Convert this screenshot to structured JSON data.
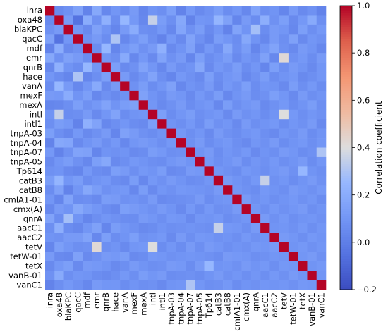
{
  "chart_data": {
    "type": "heatmap",
    "title": "",
    "labels": [
      "inra",
      "oxa48",
      "blaKPC",
      "qacC",
      "mdf",
      "emr",
      "qnrB",
      "hace",
      "vanA",
      "mexF",
      "mexA",
      "intl",
      "intl1",
      "tnpA-03",
      "tnpA-04",
      "tnpA-07",
      "tnpA-05",
      "Tp614",
      "catB3",
      "catB8",
      "cmlA1-01",
      "cmx(A)",
      "qnrA",
      "aacC1",
      "aacC2",
      "tetV",
      "tetW-01",
      "tetX",
      "vanB-01",
      "vanC1"
    ],
    "colorbar": {
      "label": "Correlation coefficient",
      "min": -0.2,
      "max": 1.0,
      "ticks": [
        1.0,
        0.8,
        0.6,
        0.4,
        0.2,
        0.0,
        -0.2
      ],
      "tick_labels": [
        "1.0",
        "0.8",
        "0.6",
        "0.4",
        "0.2",
        "0.0",
        "−0.2"
      ],
      "colormap": "coolwarm"
    },
    "matrix": [
      [
        1.0,
        0.05,
        0.08,
        0.15,
        0.02,
        0.18,
        0.04,
        0.1,
        0.06,
        0.12,
        0.03,
        0.09,
        0.07,
        0.14,
        0.02,
        0.11,
        0.05,
        0.08,
        0.13,
        0.06,
        0.1,
        0.04,
        0.16,
        0.07,
        0.09,
        0.03,
        0.12,
        0.05,
        0.08,
        0.02
      ],
      [
        0.05,
        1.0,
        0.12,
        -0.05,
        0.2,
        0.08,
        0.22,
        0.06,
        0.25,
        0.11,
        0.04,
        0.35,
        0.13,
        0.07,
        0.18,
        0.02,
        0.1,
        0.09,
        0.24,
        0.15,
        0.03,
        0.12,
        0.06,
        0.21,
        0.08,
        0.14,
        0.05,
        0.11,
        0.19,
        0.07
      ],
      [
        0.08,
        0.12,
        1.0,
        0.1,
        0.05,
        0.15,
        0.09,
        0.03,
        0.12,
        0.2,
        0.07,
        0.06,
        0.11,
        0.04,
        0.17,
        0.08,
        0.13,
        0.05,
        0.1,
        0.02,
        0.16,
        0.09,
        0.28,
        0.06,
        0.12,
        0.1,
        0.04,
        0.14,
        0.07,
        0.11
      ],
      [
        0.15,
        -0.05,
        0.1,
        1.0,
        0.08,
        0.12,
        0.06,
        0.3,
        0.04,
        0.09,
        0.14,
        0.07,
        0.02,
        0.11,
        0.05,
        0.16,
        0.08,
        0.03,
        0.13,
        0.1,
        0.06,
        0.18,
        0.09,
        0.04,
        0.12,
        0.07,
        0.15,
        0.05,
        0.1,
        0.08
      ],
      [
        0.02,
        0.2,
        0.05,
        0.08,
        1.0,
        0.06,
        0.25,
        0.03,
        0.1,
        0.14,
        0.08,
        0.12,
        0.22,
        0.05,
        0.09,
        0.15,
        0.04,
        0.11,
        0.06,
        0.18,
        0.07,
        0.13,
        0.03,
        0.1,
        0.16,
        0.08,
        0.05,
        0.12,
        0.09,
        0.04
      ],
      [
        0.18,
        0.08,
        0.15,
        0.12,
        0.06,
        1.0,
        0.1,
        0.07,
        0.19,
        0.04,
        0.11,
        0.05,
        0.16,
        0.08,
        0.12,
        0.03,
        0.14,
        0.06,
        0.09,
        0.13,
        0.05,
        0.1,
        0.07,
        0.15,
        0.04,
        0.42,
        0.08,
        0.11,
        0.06,
        0.12
      ],
      [
        0.04,
        0.22,
        0.09,
        0.06,
        0.25,
        0.1,
        1.0,
        0.14,
        0.05,
        0.08,
        0.16,
        0.1,
        0.04,
        0.12,
        0.07,
        0.09,
        0.18,
        0.05,
        0.11,
        0.08,
        0.13,
        0.06,
        0.1,
        0.03,
        0.14,
        0.07,
        0.12,
        0.09,
        0.05,
        0.1
      ],
      [
        0.1,
        0.06,
        0.03,
        0.3,
        0.03,
        0.07,
        0.14,
        1.0,
        0.12,
        0.05,
        0.09,
        0.16,
        0.07,
        0.03,
        0.11,
        0.08,
        0.05,
        0.14,
        0.06,
        0.1,
        0.12,
        0.04,
        0.08,
        0.13,
        0.06,
        0.09,
        0.11,
        0.05,
        0.07,
        0.1
      ],
      [
        0.06,
        0.25,
        0.12,
        0.04,
        0.1,
        0.19,
        0.05,
        0.12,
        1.0,
        0.08,
        0.13,
        0.06,
        0.1,
        0.15,
        0.04,
        0.09,
        0.07,
        0.12,
        0.05,
        0.11,
        0.08,
        0.14,
        0.06,
        0.1,
        0.09,
        0.05,
        0.13,
        0.07,
        0.11,
        0.06
      ],
      [
        0.12,
        0.11,
        0.2,
        0.09,
        0.14,
        0.04,
        0.08,
        0.05,
        0.08,
        1.0,
        0.15,
        0.09,
        0.06,
        0.12,
        0.1,
        0.05,
        0.11,
        0.07,
        0.13,
        0.04,
        0.09,
        0.12,
        0.06,
        0.08,
        0.14,
        0.1,
        0.05,
        0.12,
        0.07,
        0.09
      ],
      [
        0.03,
        0.04,
        0.07,
        0.14,
        0.08,
        0.11,
        0.16,
        0.09,
        0.13,
        0.15,
        1.0,
        0.1,
        0.05,
        0.08,
        0.12,
        0.06,
        0.09,
        0.11,
        0.04,
        0.13,
        0.07,
        0.1,
        0.12,
        0.05,
        0.08,
        0.11,
        0.06,
        0.09,
        0.13,
        0.07
      ],
      [
        0.09,
        0.35,
        0.06,
        0.07,
        0.12,
        0.05,
        0.1,
        0.16,
        0.06,
        0.09,
        0.1,
        1.0,
        0.14,
        0.06,
        0.1,
        0.13,
        0.07,
        0.09,
        0.11,
        0.05,
        0.12,
        0.08,
        0.1,
        0.06,
        0.09,
        0.4,
        0.11,
        0.07,
        0.1,
        0.08
      ],
      [
        0.07,
        0.13,
        0.11,
        0.02,
        0.22,
        0.16,
        0.04,
        0.07,
        0.1,
        0.06,
        0.05,
        0.14,
        1.0,
        0.09,
        0.07,
        0.11,
        0.06,
        0.13,
        0.08,
        0.1,
        0.05,
        0.12,
        0.07,
        0.09,
        0.11,
        0.06,
        0.1,
        0.08,
        0.12,
        0.05
      ],
      [
        0.14,
        0.07,
        0.04,
        0.11,
        0.05,
        0.08,
        0.12,
        0.03,
        0.15,
        0.12,
        0.08,
        0.06,
        0.09,
        1.0,
        0.11,
        0.07,
        0.1,
        0.05,
        0.12,
        0.08,
        0.06,
        0.09,
        0.11,
        0.07,
        0.05,
        0.1,
        0.08,
        0.12,
        0.06,
        0.09
      ],
      [
        0.02,
        0.18,
        0.17,
        0.05,
        0.09,
        0.12,
        0.07,
        0.11,
        0.04,
        0.1,
        0.12,
        0.1,
        0.07,
        0.11,
        1.0,
        0.08,
        0.12,
        0.06,
        0.09,
        0.11,
        0.07,
        0.05,
        0.1,
        0.08,
        0.12,
        0.06,
        0.09,
        0.11,
        0.07,
        0.1
      ],
      [
        0.11,
        0.02,
        0.08,
        0.16,
        0.15,
        0.03,
        0.09,
        0.08,
        0.09,
        0.05,
        0.06,
        0.13,
        0.11,
        0.07,
        0.08,
        1.0,
        0.09,
        0.12,
        0.06,
        0.1,
        0.08,
        0.11,
        0.05,
        0.09,
        0.07,
        0.12,
        0.1,
        0.06,
        0.08,
        0.3
      ],
      [
        0.05,
        0.1,
        0.13,
        0.08,
        0.04,
        0.14,
        0.18,
        0.05,
        0.07,
        0.11,
        0.09,
        0.07,
        0.06,
        0.1,
        0.12,
        0.09,
        1.0,
        0.11,
        0.07,
        0.09,
        0.12,
        0.06,
        0.1,
        0.08,
        0.11,
        0.07,
        0.09,
        0.12,
        0.06,
        0.1
      ],
      [
        0.08,
        0.09,
        0.05,
        0.03,
        0.11,
        0.06,
        0.05,
        0.14,
        0.12,
        0.07,
        0.11,
        0.09,
        0.13,
        0.05,
        0.06,
        0.12,
        0.11,
        1.0,
        0.1,
        0.08,
        0.06,
        0.11,
        0.09,
        0.07,
        0.1,
        0.12,
        0.08,
        0.25,
        0.09,
        0.07
      ],
      [
        0.13,
        0.24,
        0.1,
        0.13,
        0.06,
        0.09,
        0.11,
        0.06,
        0.05,
        0.13,
        0.04,
        0.11,
        0.08,
        0.12,
        0.09,
        0.06,
        0.07,
        0.1,
        1.0,
        0.12,
        0.09,
        0.07,
        0.11,
        0.35,
        0.08,
        0.1,
        0.06,
        0.09,
        0.12,
        0.08
      ],
      [
        0.06,
        0.15,
        0.02,
        0.1,
        0.18,
        0.13,
        0.08,
        0.1,
        0.11,
        0.04,
        0.13,
        0.05,
        0.1,
        0.08,
        0.11,
        0.1,
        0.09,
        0.08,
        0.12,
        1.0,
        0.1,
        0.08,
        0.06,
        0.11,
        0.09,
        0.07,
        0.12,
        0.1,
        0.08,
        0.11
      ],
      [
        0.1,
        0.03,
        0.16,
        0.06,
        0.07,
        0.05,
        0.13,
        0.12,
        0.08,
        0.09,
        0.07,
        0.12,
        0.05,
        0.06,
        0.07,
        0.08,
        0.12,
        0.06,
        0.09,
        0.1,
        1.0,
        0.12,
        0.08,
        0.1,
        0.07,
        0.09,
        0.11,
        0.08,
        0.1,
        0.06
      ],
      [
        0.04,
        0.12,
        0.09,
        0.18,
        0.13,
        0.1,
        0.06,
        0.04,
        0.14,
        0.12,
        0.1,
        0.08,
        0.12,
        0.09,
        0.05,
        0.11,
        0.06,
        0.11,
        0.07,
        0.08,
        0.12,
        1.0,
        0.1,
        0.07,
        0.11,
        0.08,
        0.1,
        0.12,
        0.07,
        0.09
      ],
      [
        0.16,
        0.06,
        0.28,
        0.09,
        0.03,
        0.07,
        0.1,
        0.08,
        0.06,
        0.06,
        0.12,
        0.1,
        0.07,
        0.11,
        0.1,
        0.05,
        0.1,
        0.09,
        0.11,
        0.06,
        0.08,
        0.1,
        1.0,
        0.12,
        0.08,
        0.11,
        0.07,
        0.09,
        0.1,
        0.08
      ],
      [
        0.07,
        0.21,
        0.06,
        0.04,
        0.1,
        0.15,
        0.03,
        0.13,
        0.1,
        0.08,
        0.05,
        0.06,
        0.09,
        0.07,
        0.08,
        0.09,
        0.08,
        0.07,
        0.35,
        0.11,
        0.1,
        0.07,
        0.12,
        1.0,
        0.09,
        0.1,
        0.08,
        0.11,
        0.07,
        0.1
      ],
      [
        0.09,
        0.08,
        0.12,
        0.12,
        0.16,
        0.04,
        0.14,
        0.06,
        0.09,
        0.14,
        0.08,
        0.09,
        0.11,
        0.05,
        0.12,
        0.07,
        0.11,
        0.1,
        0.08,
        0.09,
        0.07,
        0.11,
        0.08,
        0.09,
        1.0,
        0.12,
        0.1,
        0.07,
        0.11,
        0.09
      ],
      [
        0.03,
        0.14,
        0.1,
        0.07,
        0.08,
        0.42,
        0.07,
        0.09,
        0.05,
        0.1,
        0.11,
        0.4,
        0.06,
        0.1,
        0.06,
        0.12,
        0.07,
        0.12,
        0.1,
        0.07,
        0.09,
        0.08,
        0.11,
        0.1,
        0.12,
        1.0,
        0.09,
        0.11,
        0.08,
        0.1
      ],
      [
        0.12,
        0.05,
        0.04,
        0.15,
        0.05,
        0.08,
        0.12,
        0.11,
        0.13,
        0.05,
        0.06,
        0.11,
        0.1,
        0.08,
        0.09,
        0.1,
        0.09,
        0.08,
        0.06,
        0.12,
        0.11,
        0.1,
        0.07,
        0.08,
        0.1,
        0.09,
        1.0,
        0.1,
        0.12,
        0.08
      ],
      [
        0.05,
        0.11,
        0.14,
        0.05,
        0.12,
        0.11,
        0.09,
        0.05,
        0.07,
        0.12,
        0.09,
        0.07,
        0.08,
        0.12,
        0.11,
        0.06,
        0.12,
        0.25,
        0.09,
        0.1,
        0.08,
        0.12,
        0.09,
        0.11,
        0.07,
        0.11,
        0.1,
        1.0,
        0.09,
        0.11
      ],
      [
        0.08,
        0.19,
        0.07,
        0.1,
        0.09,
        0.06,
        0.05,
        0.07,
        0.11,
        0.07,
        0.13,
        0.1,
        0.12,
        0.06,
        0.07,
        0.08,
        0.06,
        0.09,
        0.12,
        0.08,
        0.1,
        0.07,
        0.1,
        0.07,
        0.11,
        0.08,
        0.12,
        0.09,
        1.0,
        0.1
      ],
      [
        0.02,
        0.07,
        0.11,
        0.08,
        0.04,
        0.12,
        0.1,
        0.1,
        0.06,
        0.09,
        0.07,
        0.08,
        0.05,
        0.09,
        0.1,
        0.3,
        0.1,
        0.07,
        0.08,
        0.11,
        0.06,
        0.09,
        0.08,
        0.1,
        0.09,
        0.1,
        0.08,
        0.11,
        0.1,
        1.0
      ]
    ]
  }
}
